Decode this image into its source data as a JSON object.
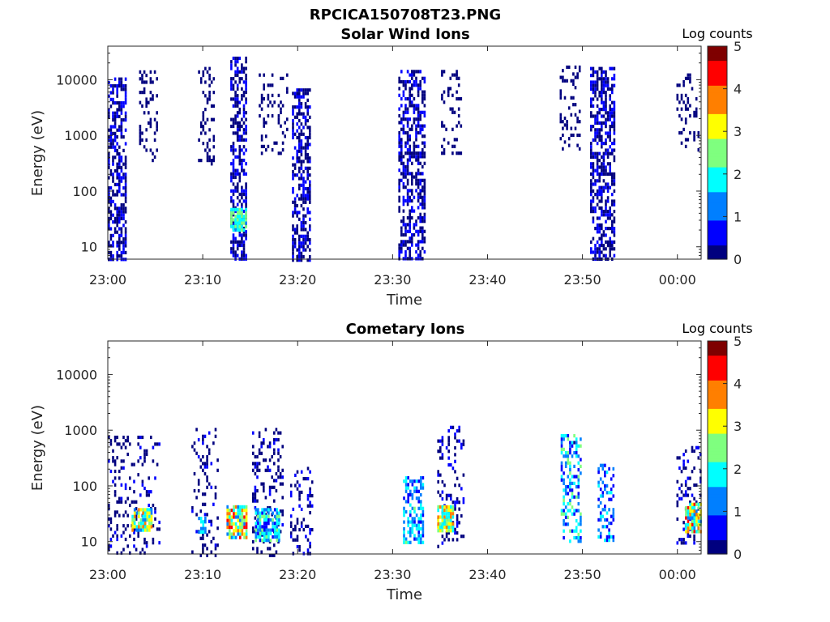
{
  "figure_title": "RPCICA150708T23.PNG",
  "colormap": [
    "#00007f",
    "#0000ff",
    "#007fff",
    "#00ffff",
    "#7fff7f",
    "#ffff00",
    "#ff7f00",
    "#ff0000",
    "#7f0000"
  ],
  "chart_data": [
    {
      "type": "heatmap",
      "title": "Solar Wind Ions",
      "xlabel": "Time",
      "ylabel": "Energy (eV)",
      "xticks": [
        "23:00",
        "23:10",
        "23:20",
        "23:30",
        "23:40",
        "23:50",
        "00:00"
      ],
      "xlim_minutes": [
        0,
        62.5
      ],
      "yscale": "log",
      "ylim": [
        6,
        40000
      ],
      "yticks": [
        "10",
        "100",
        "1000",
        "10000"
      ],
      "colorbar": {
        "label": "Log counts",
        "ticks": [
          "0",
          "1",
          "2",
          "3",
          "4",
          "5"
        ],
        "range": [
          0,
          5
        ]
      },
      "bursts": [
        {
          "t": [
            0,
            1.8
          ],
          "e": [
            6,
            11000
          ],
          "density": 0.55,
          "v": [
            0,
            0.5
          ]
        },
        {
          "t": [
            3.3,
            5.1
          ],
          "e": [
            350,
            17000
          ],
          "density": 0.22,
          "v": [
            0,
            0.3
          ]
        },
        {
          "t": [
            9.5,
            11.2
          ],
          "e": [
            320,
            17000
          ],
          "density": 0.22,
          "v": [
            0,
            0.3
          ]
        },
        {
          "t": [
            12.9,
            14.6
          ],
          "e": [
            6,
            26000
          ],
          "density": 0.55,
          "v": [
            0,
            0.5
          ]
        },
        {
          "t": [
            12.9,
            14.6
          ],
          "e": [
            20,
            50
          ],
          "density": 0.9,
          "v": [
            1.5,
            2.6
          ]
        },
        {
          "t": [
            15.9,
            18.8
          ],
          "e": [
            500,
            13000
          ],
          "density": 0.2,
          "v": [
            0,
            0.3
          ]
        },
        {
          "t": [
            19.4,
            21.2
          ],
          "e": [
            6,
            7000
          ],
          "density": 0.55,
          "v": [
            0,
            0.5
          ]
        },
        {
          "t": [
            30.6,
            33.3
          ],
          "e": [
            6,
            15000
          ],
          "density": 0.5,
          "v": [
            0,
            0.5
          ]
        },
        {
          "t": [
            35.1,
            37.3
          ],
          "e": [
            450,
            15000
          ],
          "density": 0.22,
          "v": [
            0,
            0.3
          ]
        },
        {
          "t": [
            47.6,
            49.7
          ],
          "e": [
            550,
            18000
          ],
          "density": 0.22,
          "v": [
            0,
            0.3
          ]
        },
        {
          "t": [
            50.8,
            53.3
          ],
          "e": [
            6,
            17000
          ],
          "density": 0.55,
          "v": [
            0,
            0.5
          ]
        },
        {
          "t": [
            59.9,
            62.3
          ],
          "e": [
            500,
            13000
          ],
          "density": 0.22,
          "v": [
            0,
            0.3
          ]
        }
      ]
    },
    {
      "type": "heatmap",
      "title": "Cometary Ions",
      "xlabel": "Time",
      "ylabel": "Energy (eV)",
      "xticks": [
        "23:00",
        "23:10",
        "23:20",
        "23:30",
        "23:40",
        "23:50",
        "00:00"
      ],
      "xlim_minutes": [
        0,
        62.5
      ],
      "yscale": "log",
      "ylim": [
        6,
        40000
      ],
      "yticks": [
        "10",
        "100",
        "1000",
        "10000"
      ],
      "colorbar": {
        "label": "Log counts",
        "ticks": [
          "0",
          "1",
          "2",
          "3",
          "4",
          "5"
        ],
        "range": [
          0,
          5
        ]
      },
      "bursts": [
        {
          "t": [
            0,
            5.4
          ],
          "e": [
            6,
            800
          ],
          "density": 0.18,
          "v": [
            0,
            0.4
          ]
        },
        {
          "t": [
            2.5,
            4.5
          ],
          "e": [
            15,
            40
          ],
          "density": 0.8,
          "v": [
            1.0,
            3.8
          ]
        },
        {
          "t": [
            8.8,
            11.6
          ],
          "e": [
            6,
            1100
          ],
          "density": 0.2,
          "v": [
            0,
            0.4
          ]
        },
        {
          "t": [
            9.5,
            10.3
          ],
          "e": [
            14,
            28
          ],
          "density": 0.8,
          "v": [
            1.2,
            2.2
          ]
        },
        {
          "t": [
            12.5,
            14.7
          ],
          "e": [
            12,
            45
          ],
          "density": 0.85,
          "v": [
            1.2,
            4.3
          ]
        },
        {
          "t": [
            15.2,
            18.5
          ],
          "e": [
            6,
            1100
          ],
          "density": 0.22,
          "v": [
            0,
            0.4
          ]
        },
        {
          "t": [
            15.5,
            18
          ],
          "e": [
            10,
            40
          ],
          "density": 0.8,
          "v": [
            0.6,
            2.6
          ]
        },
        {
          "t": [
            19.2,
            21.6
          ],
          "e": [
            6,
            220
          ],
          "density": 0.25,
          "v": [
            0,
            0.5
          ]
        },
        {
          "t": [
            31.1,
            33.3
          ],
          "e": [
            10,
            150
          ],
          "density": 0.5,
          "v": [
            0.5,
            2.2
          ]
        },
        {
          "t": [
            34.7,
            37.5
          ],
          "e": [
            8,
            1200
          ],
          "density": 0.22,
          "v": [
            0,
            0.5
          ]
        },
        {
          "t": [
            34.7,
            36.3
          ],
          "e": [
            15,
            45
          ],
          "density": 0.85,
          "v": [
            1.6,
            4.0
          ]
        },
        {
          "t": [
            47.7,
            49.8
          ],
          "e": [
            10,
            850
          ],
          "density": 0.4,
          "v": [
            0.3,
            2.5
          ]
        },
        {
          "t": [
            51.6,
            53.3
          ],
          "e": [
            10,
            250
          ],
          "density": 0.35,
          "v": [
            0.3,
            2.0
          ]
        },
        {
          "t": [
            59.9,
            62.4
          ],
          "e": [
            10,
            520
          ],
          "density": 0.25,
          "v": [
            0,
            0.5
          ]
        },
        {
          "t": [
            60.8,
            62.4
          ],
          "e": [
            15,
            50
          ],
          "density": 0.8,
          "v": [
            1.2,
            4.4
          ]
        }
      ]
    }
  ]
}
